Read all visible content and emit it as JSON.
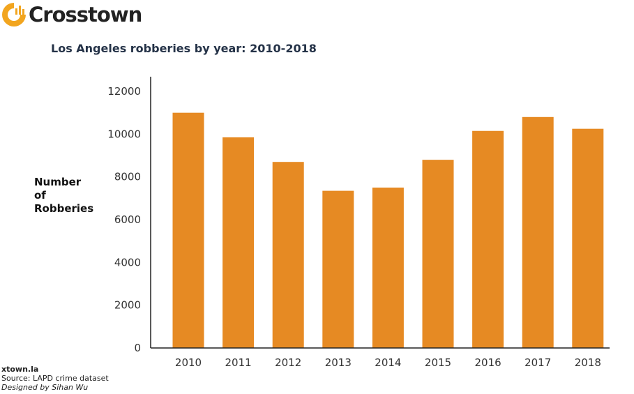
{
  "brand": {
    "name": "Crosstown",
    "accent_color": "#F2A51F",
    "logo_icon": "crosstown-logo-icon"
  },
  "footer": {
    "site": "xtown.la",
    "source": "Source: LAPD crime dataset",
    "designer": "Designed by Sihan Wu"
  },
  "chart_data": {
    "type": "bar",
    "title": "Los Angeles robberies by year: 2010-2018",
    "ylabel_lines": [
      "Number",
      "of",
      "Robberies"
    ],
    "xlabel": "",
    "categories": [
      "2010",
      "2011",
      "2012",
      "2013",
      "2014",
      "2015",
      "2016",
      "2017",
      "2018"
    ],
    "values": [
      11000,
      9850,
      8700,
      7350,
      7500,
      8800,
      10150,
      10800,
      10250
    ],
    "ylim": [
      0,
      12000
    ],
    "yticks": [
      "0",
      "2000",
      "4000",
      "6000",
      "8000",
      "10000",
      "12000"
    ],
    "bar_color": "#E68A23",
    "grid": false
  }
}
